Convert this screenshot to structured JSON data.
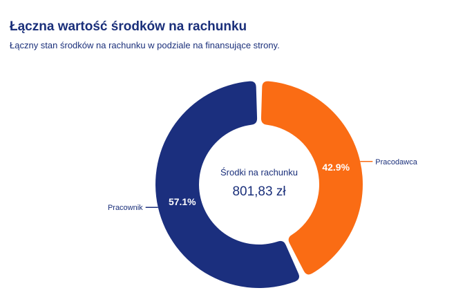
{
  "header": {
    "title": "Łączna wartość środków na rachunku",
    "subtitle": "Łączny stan środków na rachunku w podziale na finansujące strony."
  },
  "chart_data": {
    "type": "pie",
    "variant": "donut",
    "title": "Łączna wartość środków na rachunku",
    "center_label": "Środki na rachunku",
    "center_value": "801,83 zł",
    "slices": [
      {
        "name": "Pracodawca",
        "value": 42.9,
        "label": "42.9%",
        "color": "#fa6c14"
      },
      {
        "name": "Pracownik",
        "value": 57.1,
        "label": "57.1%",
        "color": "#1b2f7e"
      }
    ]
  }
}
